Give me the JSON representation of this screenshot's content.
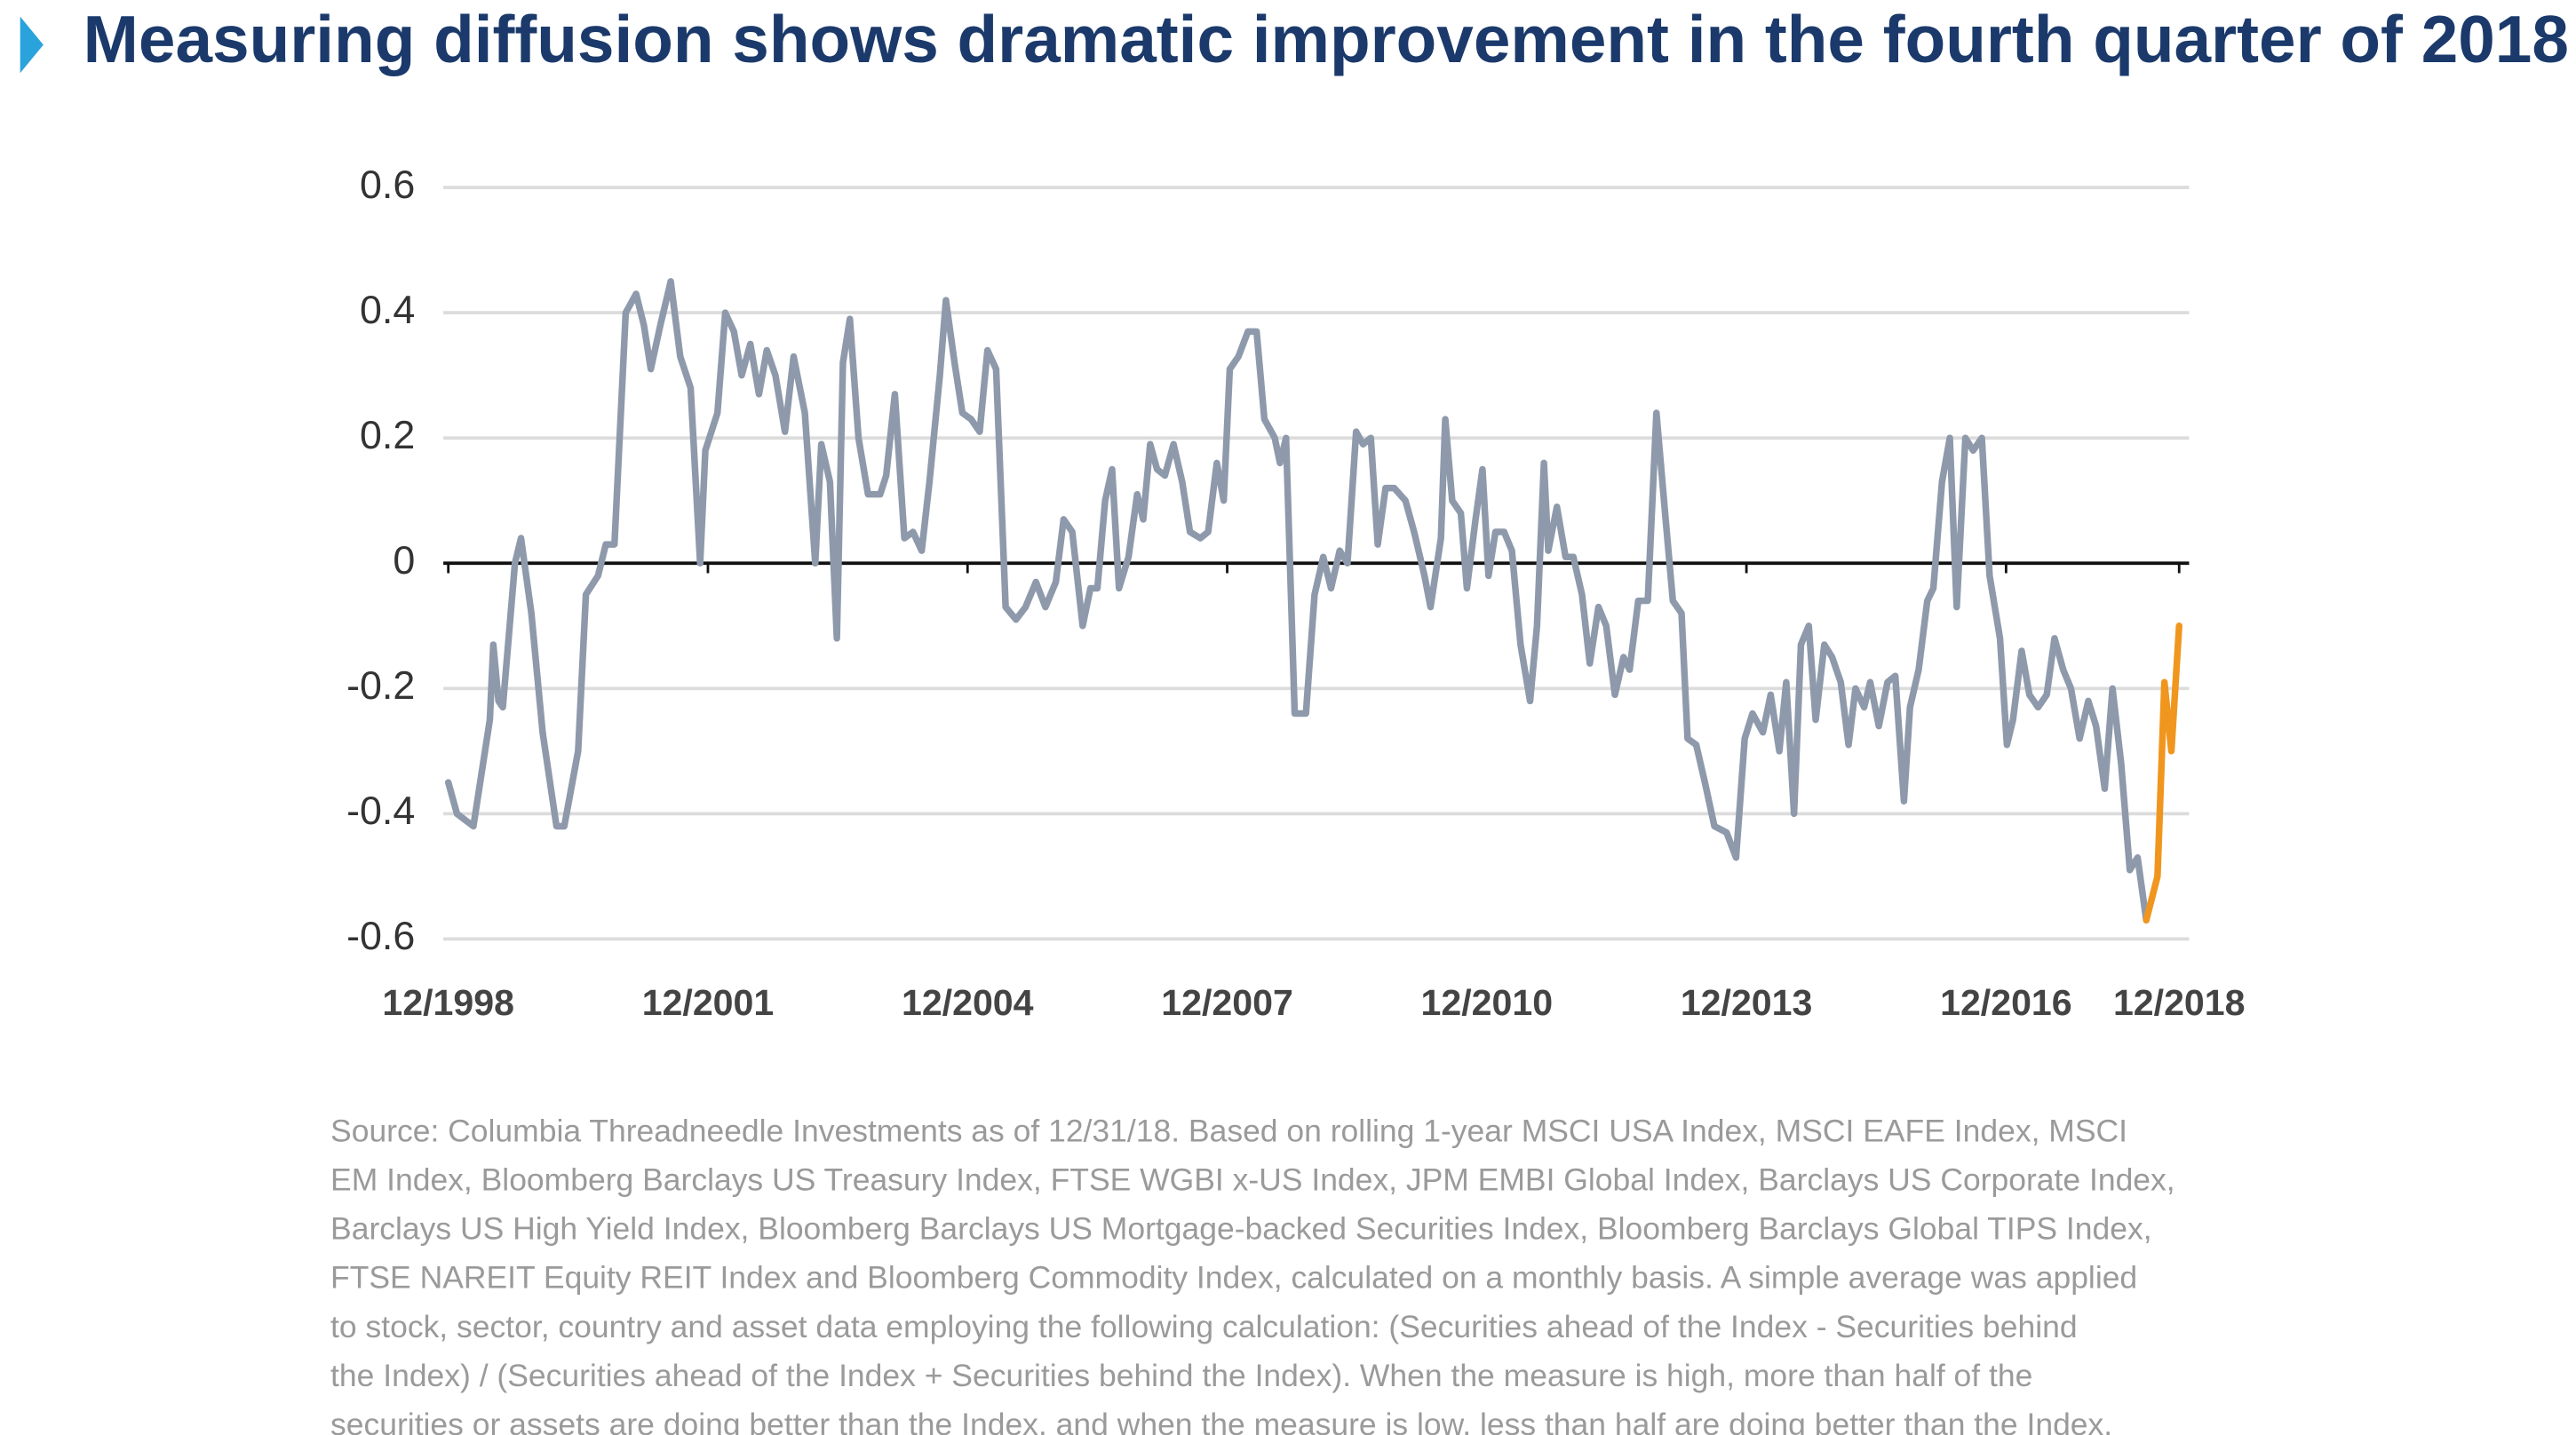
{
  "chart_data": {
    "type": "line",
    "title": "Measuring diffusion shows dramatic improvement in the fourth quarter of 2018",
    "notes": [
      "Source: Columbia Threadneedle Investments as of 12/31/18. Based on rolling 1-year MSCI USA Index, MSCI EAFE Index, MSCI",
      "EM Index, Bloomberg Barclays US Treasury Index, FTSE WGBI x-US Index, JPM EMBI Global Index, Barclays US Corporate Index,",
      "Barclays US High Yield Index, Bloomberg Barclays US Mortgage-backed Securities Index, Bloomberg Barclays Global TIPS Index,",
      "FTSE NAREIT Equity REIT Index and Bloomberg Commodity Index, calculated on a monthly basis. A simple average was applied",
      "to stock, sector, country and asset data employing the following calculation: (Securities ahead of the Index - Securities behind",
      "the Index) / (Securities ahead of the Index + Securities behind the Index). When the measure is high, more than half of the",
      "securities or assets are doing better than the Index, and when the measure is low, less than half are doing better than the Index."
    ],
    "xlim": [
      1998.92,
      2018.92
    ],
    "xticks": [
      {
        "value": 1998.92,
        "label": "12/1998"
      },
      {
        "value": 2001.92,
        "label": "12/2001"
      },
      {
        "value": 2004.92,
        "label": "12/2004"
      },
      {
        "value": 2007.92,
        "label": "12/2007"
      },
      {
        "value": 2010.92,
        "label": "12/2010"
      },
      {
        "value": 2013.92,
        "label": "12/2013"
      },
      {
        "value": 2016.92,
        "label": "12/2016"
      },
      {
        "value": 2018.92,
        "label": "12/2018"
      }
    ],
    "ylim": [
      -0.6,
      0.6
    ],
    "yticks": [
      0.6,
      0.4,
      0.2,
      0,
      -0.2,
      -0.4,
      -0.6
    ],
    "grid": true,
    "series": [
      {
        "color": "#8e9aab",
        "x": [
          1998.92,
          1999.02,
          1999.21,
          1999.4,
          1999.44,
          1999.5,
          1999.55,
          1999.69,
          1999.76,
          1999.88,
          2000.01,
          2000.17,
          2000.26,
          2000.42,
          2000.51,
          2000.65,
          2000.74,
          2000.84,
          2000.97,
          2001.09,
          2001.18,
          2001.26,
          2001.37,
          2001.49,
          2001.6,
          2001.72,
          2001.83,
          2001.89,
          2002.03,
          2002.12,
          2002.22,
          2002.31,
          2002.41,
          2002.51,
          2002.6,
          2002.7,
          2002.81,
          2002.91,
          2003.04,
          2003.16,
          2003.23,
          2003.33,
          2003.41,
          2003.48,
          2003.56,
          2003.66,
          2003.77,
          2003.91,
          2003.98,
          2004.08,
          2004.19,
          2004.29,
          2004.39,
          2004.48,
          2004.6,
          2004.67,
          2004.77,
          2004.86,
          2004.96,
          2005.06,
          2005.15,
          2005.25,
          2005.36,
          2005.48,
          2005.59,
          2005.71,
          2005.82,
          2005.94,
          2006.03,
          2006.13,
          2006.25,
          2006.34,
          2006.42,
          2006.51,
          2006.59,
          2006.67,
          2006.78,
          2006.88,
          2006.95,
          2007.03,
          2007.11,
          2007.2,
          2007.3,
          2007.4,
          2007.49,
          2007.61,
          2007.7,
          2007.8,
          2007.88,
          2007.95,
          2008.05,
          2008.16,
          2008.26,
          2008.35,
          2008.47,
          2008.53,
          2008.6,
          2008.7,
          2008.83,
          2008.93,
          2009.03,
          2009.12,
          2009.22,
          2009.31,
          2009.41,
          2009.49,
          2009.58,
          2009.66,
          2009.75,
          2009.85,
          2009.98,
          2010.08,
          2010.2,
          2010.27,
          2010.39,
          2010.44,
          2010.52,
          2010.62,
          2010.69,
          2010.79,
          2010.87,
          2010.94,
          2011.02,
          2011.12,
          2011.21,
          2011.31,
          2011.42,
          2011.5,
          2011.58,
          2011.63,
          2011.73,
          2011.83,
          2011.92,
          2012.02,
          2012.11,
          2012.21,
          2012.3,
          2012.4,
          2012.5,
          2012.57,
          2012.67,
          2012.78,
          2012.88,
          2012.98,
          2013.07,
          2013.17,
          2013.24,
          2013.34,
          2013.44,
          2013.55,
          2013.69,
          2013.8,
          2013.9,
          2013.99,
          2014.11,
          2014.2,
          2014.3,
          2014.38,
          2014.47,
          2014.55,
          2014.64,
          2014.72,
          2014.82,
          2014.91,
          2015.01,
          2015.1,
          2015.18,
          2015.28,
          2015.35,
          2015.45,
          2015.55,
          2015.64,
          2015.74,
          2015.81,
          2015.91,
          2016.01,
          2016.08,
          2016.18,
          2016.27,
          2016.35,
          2016.45,
          2016.54,
          2016.64,
          2016.73,
          2016.85,
          2016.93,
          2017.0,
          2017.1,
          2017.19,
          2017.29,
          2017.39,
          2017.48,
          2017.58,
          2017.67,
          2017.77,
          2017.87,
          2017.96,
          2018.06,
          2018.15,
          2018.25,
          2018.35,
          2018.44,
          2018.54
        ],
        "values": [
          -0.35,
          -0.4,
          -0.42,
          -0.25,
          -0.13,
          -0.22,
          -0.23,
          0.0,
          0.04,
          -0.08,
          -0.27,
          -0.42,
          -0.42,
          -0.3,
          -0.05,
          -0.02,
          0.03,
          0.03,
          0.4,
          0.43,
          0.38,
          0.31,
          0.38,
          0.45,
          0.33,
          0.28,
          0.0,
          0.18,
          0.24,
          0.4,
          0.37,
          0.3,
          0.35,
          0.27,
          0.34,
          0.3,
          0.21,
          0.33,
          0.24,
          0.0,
          0.19,
          0.13,
          -0.12,
          0.32,
          0.39,
          0.2,
          0.11,
          0.11,
          0.14,
          0.27,
          0.04,
          0.05,
          0.02,
          0.13,
          0.3,
          0.42,
          0.32,
          0.24,
          0.23,
          0.21,
          0.34,
          0.31,
          -0.07,
          -0.09,
          -0.07,
          -0.03,
          -0.07,
          -0.03,
          0.07,
          0.05,
          -0.1,
          -0.04,
          -0.04,
          0.1,
          0.15,
          -0.04,
          0.01,
          0.11,
          0.07,
          0.19,
          0.15,
          0.14,
          0.19,
          0.13,
          0.05,
          0.04,
          0.05,
          0.16,
          0.1,
          0.31,
          0.33,
          0.37,
          0.37,
          0.23,
          0.2,
          0.16,
          0.2,
          -0.24,
          -0.24,
          -0.05,
          0.01,
          -0.04,
          0.02,
          0.0,
          0.21,
          0.19,
          0.2,
          0.03,
          0.12,
          0.12,
          0.1,
          0.05,
          -0.02,
          -0.07,
          0.04,
          0.23,
          0.1,
          0.08,
          -0.04,
          0.07,
          0.15,
          -0.02,
          0.05,
          0.05,
          0.02,
          -0.13,
          -0.22,
          -0.1,
          0.16,
          0.02,
          0.09,
          0.01,
          0.01,
          -0.05,
          -0.16,
          -0.07,
          -0.1,
          -0.21,
          -0.15,
          -0.17,
          -0.06,
          -0.06,
          0.24,
          0.08,
          -0.06,
          -0.08,
          -0.28,
          -0.29,
          -0.35,
          -0.42,
          -0.43,
          -0.47,
          -0.28,
          -0.24,
          -0.27,
          -0.21,
          -0.3,
          -0.19,
          -0.4,
          -0.13,
          -0.1,
          -0.25,
          -0.13,
          -0.15,
          -0.19,
          -0.29,
          -0.2,
          -0.23,
          -0.19,
          -0.26,
          -0.19,
          -0.18,
          -0.38,
          -0.23,
          -0.17,
          -0.06,
          -0.04,
          0.13,
          0.2,
          -0.07,
          0.2,
          0.18,
          0.2,
          -0.02,
          -0.12,
          -0.29,
          -0.25,
          -0.14,
          -0.21,
          -0.23,
          -0.21,
          -0.12,
          -0.17,
          -0.2,
          -0.28,
          -0.22,
          -0.26,
          -0.36,
          -0.2,
          -0.32,
          -0.49,
          -0.47,
          -0.57
        ]
      },
      {
        "color": "#f0961e",
        "x": [
          2018.54,
          2018.67,
          2018.75,
          2018.83,
          2018.92
        ],
        "values": [
          -0.57,
          -0.5,
          -0.19,
          -0.3,
          -0.1
        ]
      }
    ]
  }
}
